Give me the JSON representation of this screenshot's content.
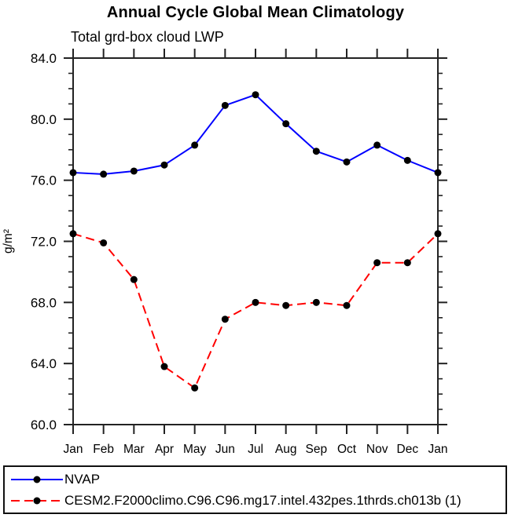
{
  "title": "Annual Cycle Global Mean Climatology",
  "subtitle": "Total grd-box cloud LWP",
  "chart_data": {
    "type": "line",
    "title": "Annual Cycle Global Mean Climatology",
    "subtitle": "Total grd-box cloud LWP",
    "ylabel": "g/m²",
    "xlabel": "",
    "ylim": [
      60.0,
      84.0
    ],
    "ytick_step": 4.0,
    "yminor_step": 1.0,
    "ytick_labels": [
      "84.0",
      "80.0",
      "76.0",
      "72.0",
      "68.0",
      "64.0",
      "60.0"
    ],
    "categories": [
      "Jan",
      "Feb",
      "Mar",
      "Apr",
      "May",
      "Jun",
      "Jul",
      "Aug",
      "Sep",
      "Oct",
      "Nov",
      "Dec",
      "Jan"
    ],
    "series": [
      {
        "name": "NVAP",
        "color": "#0000ff",
        "line_style": "solid",
        "marker": "filled-circle",
        "marker_color": "#000000",
        "values": [
          76.5,
          76.4,
          76.6,
          77.0,
          78.3,
          80.9,
          81.6,
          79.7,
          77.9,
          77.2,
          78.3,
          77.3,
          76.5
        ]
      },
      {
        "name": "CESM2.F2000climo.C96.C96.mg17.intel.432pes.1thrds.ch013b (1)",
        "color": "#ff0000",
        "line_style": "dashed",
        "marker": "filled-circle",
        "marker_color": "#000000",
        "values": [
          72.5,
          71.9,
          69.5,
          63.8,
          62.4,
          66.9,
          68.0,
          67.8,
          68.0,
          67.8,
          70.6,
          70.6,
          72.5
        ]
      }
    ],
    "grid": false,
    "legend_position": "bottom-left-box"
  },
  "colors": {
    "axis": "#222222",
    "text": "#000000",
    "series1": "#0000ff",
    "series2": "#ff0000",
    "marker": "#000000",
    "background": "#ffffff"
  }
}
